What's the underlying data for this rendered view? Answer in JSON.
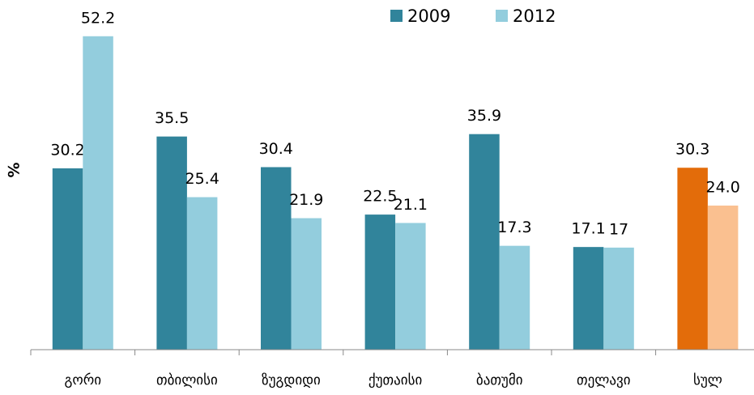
{
  "chart_data": {
    "type": "bar",
    "y_label": "%",
    "categories": [
      "გორი",
      "თბილისი",
      "ზუგდიდი",
      "ქუთაისი",
      "ბათუმი",
      "თელავი",
      "სულ"
    ],
    "series": [
      {
        "name": "2009",
        "color": "#31849b",
        "colors": [
          "#31849b",
          "#31849b",
          "#31849b",
          "#31849b",
          "#31849b",
          "#31849b",
          "#e36c0a"
        ],
        "values": [
          30.2,
          35.5,
          30.4,
          22.5,
          35.9,
          17.1,
          30.3
        ]
      },
      {
        "name": "2012",
        "color": "#93cddd",
        "colors": [
          "#93cddd",
          "#93cddd",
          "#93cddd",
          "#93cddd",
          "#93cddd",
          "#93cddd",
          "#fac090"
        ],
        "values": [
          52.2,
          25.4,
          21.9,
          21.1,
          17.3,
          17,
          24
        ],
        "value_labels": [
          "52.2",
          "25.4",
          "21.9",
          "21.1",
          "17.3",
          "17",
          "24.0"
        ]
      }
    ],
    "ylim": [
      0,
      55
    ],
    "legend": "top"
  }
}
